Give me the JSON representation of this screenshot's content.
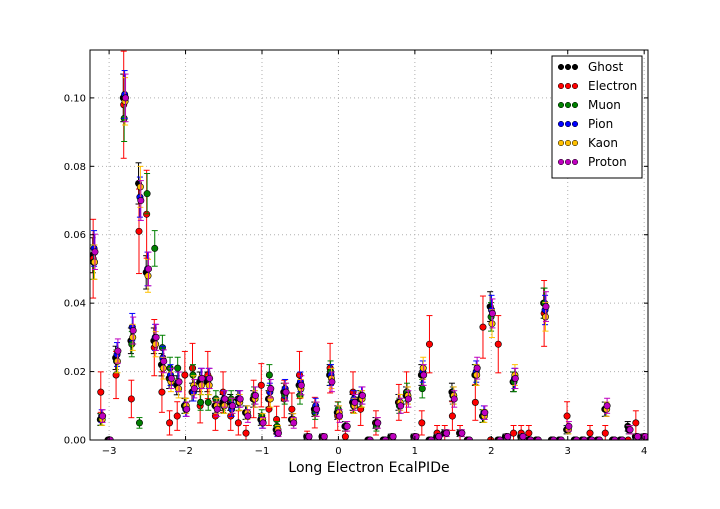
{
  "chart_data": {
    "type": "scatter",
    "title": "",
    "xlabel": "Long Electron EcalPIDe",
    "ylabel": "",
    "xlim": [
      -3.25,
      4.05
    ],
    "ylim": [
      0.0,
      0.114
    ],
    "grid": true,
    "legend_position": "top-right",
    "x_ticks": [
      -3,
      -2,
      -1,
      0,
      1,
      2,
      3,
      4
    ],
    "x_tick_labels": [
      "−3",
      "−2",
      "−1",
      "0",
      "1",
      "2",
      "3",
      "4"
    ],
    "y_ticks": [
      0.0,
      0.02,
      0.04,
      0.06,
      0.08,
      0.1
    ],
    "y_tick_labels": [
      "0.00",
      "0.02",
      "0.04",
      "0.06",
      "0.08",
      "0.10"
    ],
    "x": [
      -3.2,
      -3.1,
      -3.0,
      -2.9,
      -2.8,
      -2.7,
      -2.6,
      -2.5,
      -2.4,
      -2.3,
      -2.2,
      -2.1,
      -2.0,
      -1.9,
      -1.8,
      -1.7,
      -1.6,
      -1.5,
      -1.4,
      -1.3,
      -1.2,
      -1.1,
      -1.0,
      -0.9,
      -0.8,
      -0.7,
      -0.6,
      -0.5,
      -0.4,
      -0.3,
      -0.2,
      -0.1,
      0.0,
      0.1,
      0.2,
      0.3,
      0.4,
      0.5,
      0.6,
      0.7,
      0.8,
      0.9,
      1.0,
      1.1,
      1.2,
      1.3,
      1.4,
      1.5,
      1.6,
      1.7,
      1.8,
      1.9,
      2.0,
      2.1,
      2.2,
      2.3,
      2.4,
      2.5,
      2.6,
      2.7,
      2.8,
      2.9,
      3.0,
      3.1,
      3.2,
      3.3,
      3.4,
      3.5,
      3.6,
      3.7,
      3.8,
      3.9,
      4.0
    ],
    "series": [
      {
        "name": "Ghost",
        "color": "#000000",
        "values": [
          0.054,
          0.006,
          0.0,
          0.024,
          0.1,
          0.029,
          0.075,
          0.049,
          0.029,
          0.022,
          0.018,
          0.016,
          0.01,
          0.014,
          0.017,
          0.017,
          0.01,
          0.011,
          0.011,
          0.012,
          0.008,
          0.012,
          0.006,
          0.012,
          0.003,
          0.014,
          0.006,
          0.016,
          0.001,
          0.009,
          0.001,
          0.019,
          0.008,
          0.004,
          0.011,
          0.012,
          0.0,
          0.005,
          0.0,
          0.001,
          0.011,
          0.013,
          0.001,
          0.019,
          0.0,
          0.001,
          0.002,
          0.014,
          0.002,
          0.0,
          0.019,
          0.007,
          0.039,
          0.0,
          0.001,
          0.017,
          0.001,
          0.0,
          0.0,
          0.04,
          0.0,
          0.0,
          0.003,
          0.0,
          0.0,
          0.0,
          0.0,
          0.009,
          0.0,
          0.0,
          0.004,
          0.001,
          0.001
        ]
      },
      {
        "name": "Electron",
        "color": "#ff0000",
        "values": [
          0.053,
          0.014,
          0.0,
          0.019,
          0.098,
          0.012,
          0.061,
          0.066,
          0.027,
          0.014,
          0.005,
          0.007,
          0.019,
          0.021,
          0.01,
          0.019,
          0.007,
          0.014,
          0.007,
          0.005,
          0.002,
          0.012,
          0.016,
          0.009,
          0.006,
          0.012,
          0.009,
          0.019,
          0.001,
          0.008,
          0.0,
          0.021,
          0.007,
          0.001,
          0.014,
          0.009,
          0.0,
          0.005,
          0.0,
          0.0,
          0.011,
          0.014,
          0.0,
          0.005,
          0.028,
          0.002,
          0.002,
          0.007,
          0.002,
          0.0,
          0.011,
          0.033,
          0.0,
          0.028,
          0.0,
          0.002,
          0.002,
          0.002,
          0.0,
          0.037,
          0.0,
          0.0,
          0.007,
          0.0,
          0.0,
          0.002,
          0.0,
          0.002,
          0.0,
          0.0,
          0.0,
          0.005,
          0.0
        ]
      },
      {
        "name": "Muon",
        "color": "#008000",
        "values": [
          0.052,
          0.006,
          0.0,
          0.023,
          0.094,
          0.028,
          0.005,
          0.072,
          0.056,
          0.027,
          0.021,
          0.021,
          0.01,
          0.019,
          0.011,
          0.011,
          0.012,
          0.01,
          0.012,
          0.011,
          0.008,
          0.013,
          0.007,
          0.019,
          0.004,
          0.013,
          0.006,
          0.013,
          0.001,
          0.008,
          0.001,
          0.02,
          0.009,
          0.004,
          0.01,
          0.012,
          0.0,
          0.004,
          0.0,
          0.001,
          0.01,
          0.014,
          0.001,
          0.015,
          0.0,
          0.001,
          0.002,
          0.013,
          0.002,
          0.0,
          0.019,
          0.007,
          0.036,
          0.0,
          0.001,
          0.017,
          0.001,
          0.0,
          0.0,
          0.04,
          0.0,
          0.0,
          0.003,
          0.0,
          0.0,
          0.0,
          0.0,
          0.009,
          0.0,
          0.0,
          0.003,
          0.001,
          0.001
        ]
      },
      {
        "name": "Pion",
        "color": "#0000ff",
        "values": [
          0.056,
          0.007,
          0.0,
          0.025,
          0.101,
          0.033,
          0.071,
          0.05,
          0.03,
          0.024,
          0.019,
          0.017,
          0.009,
          0.014,
          0.018,
          0.018,
          0.01,
          0.012,
          0.009,
          0.012,
          0.008,
          0.012,
          0.005,
          0.014,
          0.002,
          0.015,
          0.006,
          0.017,
          0.001,
          0.01,
          0.001,
          0.019,
          0.008,
          0.004,
          0.012,
          0.013,
          0.0,
          0.005,
          0.0,
          0.001,
          0.011,
          0.013,
          0.001,
          0.02,
          0.0,
          0.001,
          0.002,
          0.013,
          0.002,
          0.0,
          0.02,
          0.008,
          0.038,
          0.0,
          0.001,
          0.018,
          0.001,
          0.0,
          0.0,
          0.038,
          0.0,
          0.0,
          0.003,
          0.0,
          0.0,
          0.0,
          0.0,
          0.009,
          0.0,
          0.0,
          0.003,
          0.001,
          0.001
        ]
      },
      {
        "name": "Kaon",
        "color": "#ffc000",
        "values": [
          0.052,
          0.006,
          0.0,
          0.023,
          0.099,
          0.03,
          0.074,
          0.048,
          0.028,
          0.021,
          0.017,
          0.015,
          0.01,
          0.016,
          0.016,
          0.016,
          0.01,
          0.01,
          0.01,
          0.011,
          0.008,
          0.012,
          0.006,
          0.012,
          0.003,
          0.014,
          0.006,
          0.015,
          0.001,
          0.009,
          0.001,
          0.018,
          0.008,
          0.004,
          0.01,
          0.012,
          0.0,
          0.005,
          0.0,
          0.001,
          0.011,
          0.013,
          0.001,
          0.021,
          0.0,
          0.001,
          0.002,
          0.013,
          0.002,
          0.0,
          0.019,
          0.007,
          0.034,
          0.0,
          0.001,
          0.019,
          0.001,
          0.0,
          0.0,
          0.036,
          0.0,
          0.0,
          0.003,
          0.0,
          0.0,
          0.0,
          0.0,
          0.009,
          0.0,
          0.0,
          0.003,
          0.001,
          0.001
        ]
      },
      {
        "name": "Proton",
        "color": "#bf00bf",
        "values": [
          0.055,
          0.007,
          0.0,
          0.026,
          0.1,
          0.032,
          0.07,
          0.05,
          0.03,
          0.023,
          0.018,
          0.017,
          0.009,
          0.015,
          0.018,
          0.018,
          0.009,
          0.012,
          0.01,
          0.012,
          0.007,
          0.013,
          0.005,
          0.015,
          0.002,
          0.014,
          0.005,
          0.016,
          0.001,
          0.009,
          0.001,
          0.017,
          0.007,
          0.004,
          0.011,
          0.013,
          0.0,
          0.005,
          0.0,
          0.001,
          0.01,
          0.012,
          0.001,
          0.019,
          0.0,
          0.001,
          0.002,
          0.012,
          0.002,
          0.0,
          0.021,
          0.008,
          0.037,
          0.0,
          0.001,
          0.018,
          0.001,
          0.0,
          0.0,
          0.039,
          0.0,
          0.0,
          0.004,
          0.0,
          0.0,
          0.0,
          0.0,
          0.01,
          0.0,
          0.0,
          0.003,
          0.001,
          0.001
        ]
      }
    ]
  }
}
